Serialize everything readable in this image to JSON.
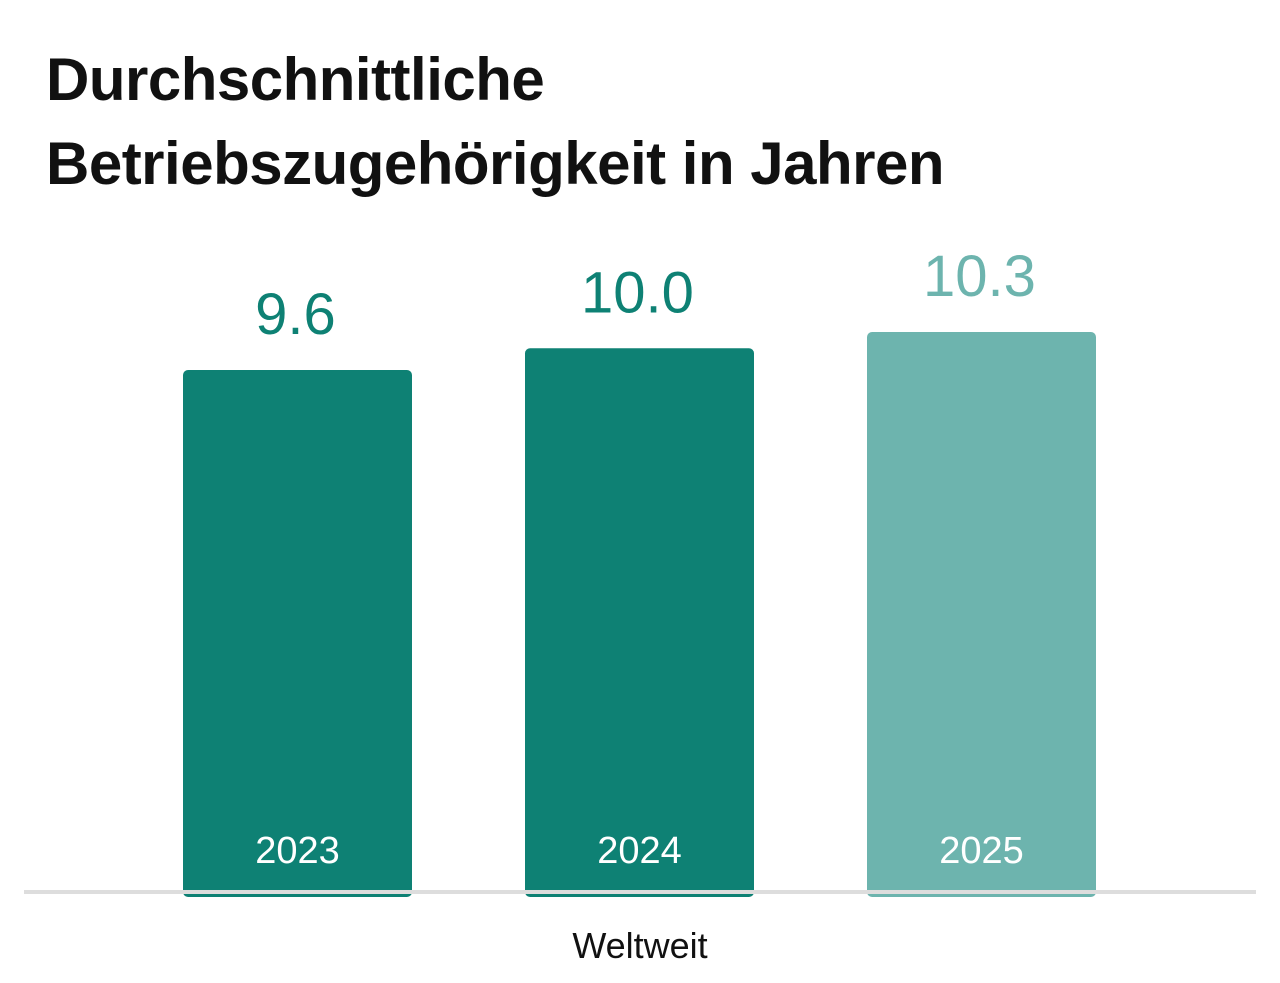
{
  "chart_data": {
    "type": "bar",
    "title_lines": [
      "Durchschnittliche",
      "Betriebszugehörigkeit in Jahren"
    ],
    "categories": [
      "2023",
      "2024",
      "2025"
    ],
    "values": [
      9.6,
      10.0,
      10.3
    ],
    "value_labels": [
      "9.6",
      "10.0",
      "10.3"
    ],
    "xlabel": "Weltweit",
    "ylabel": "",
    "ylim": [
      0,
      10.3
    ],
    "grid": false,
    "legend": "none",
    "colors": {
      "bars": [
        "#0e8174",
        "#0e8174",
        "#6db4ae"
      ],
      "value_labels": [
        "#0e8174",
        "#0e8174",
        "#6db4ae"
      ],
      "category_label_text": "#ffffff",
      "baseline": "#dddddd",
      "xlabel": "#111111"
    }
  }
}
